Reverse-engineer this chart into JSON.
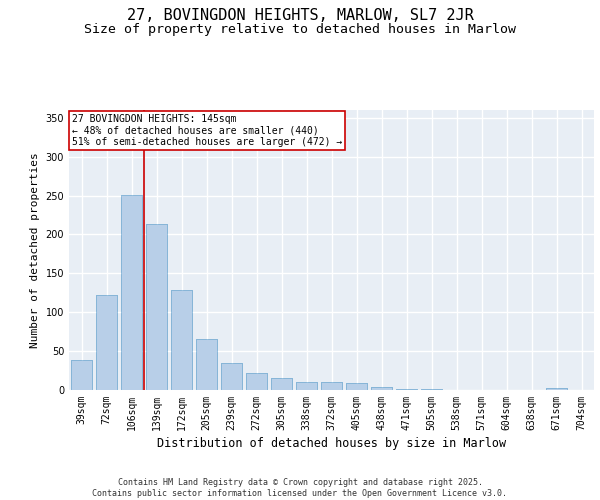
{
  "title1": "27, BOVINGDON HEIGHTS, MARLOW, SL7 2JR",
  "title2": "Size of property relative to detached houses in Marlow",
  "xlabel": "Distribution of detached houses by size in Marlow",
  "ylabel": "Number of detached properties",
  "categories": [
    "39sqm",
    "72sqm",
    "106sqm",
    "139sqm",
    "172sqm",
    "205sqm",
    "239sqm",
    "272sqm",
    "305sqm",
    "338sqm",
    "372sqm",
    "405sqm",
    "438sqm",
    "471sqm",
    "505sqm",
    "538sqm",
    "571sqm",
    "604sqm",
    "638sqm",
    "671sqm",
    "704sqm"
  ],
  "values": [
    38,
    122,
    251,
    213,
    129,
    66,
    35,
    22,
    16,
    10,
    10,
    9,
    4,
    1,
    1,
    0,
    0,
    0,
    0,
    3,
    0
  ],
  "bar_color": "#b8cfe8",
  "bar_edge_color": "#7aafd4",
  "background_color": "#e8eef5",
  "grid_color": "#ffffff",
  "vline_color": "#cc0000",
  "vline_position": 2.5,
  "annotation_title": "27 BOVINGDON HEIGHTS: 145sqm",
  "annotation_line2": "← 48% of detached houses are smaller (440)",
  "annotation_line3": "51% of semi-detached houses are larger (472) →",
  "annotation_box_edgecolor": "#cc0000",
  "ylim": [
    0,
    360
  ],
  "yticks": [
    0,
    50,
    100,
    150,
    200,
    250,
    300,
    350
  ],
  "footer_line1": "Contains HM Land Registry data © Crown copyright and database right 2025.",
  "footer_line2": "Contains public sector information licensed under the Open Government Licence v3.0.",
  "title1_fontsize": 11,
  "title2_fontsize": 9.5,
  "xlabel_fontsize": 8.5,
  "ylabel_fontsize": 8,
  "tick_fontsize": 7,
  "footer_fontsize": 6,
  "ann_fontsize": 7
}
